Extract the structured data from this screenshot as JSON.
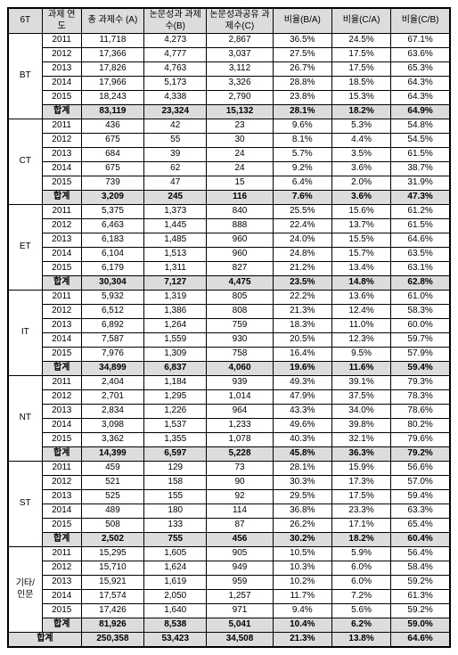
{
  "headers": {
    "h1": "6T",
    "h2": "과제\n연도",
    "h3": "총 과제수\n(A)",
    "h4": "논문성과\n과제수(B)",
    "h5": "논문성과공유\n과제수(C)",
    "h6": "비율(B/A)",
    "h7": "비율(C/A)",
    "h8": "비율(C/B)"
  },
  "groups": [
    {
      "name": "BT",
      "rows": [
        {
          "y": "2011",
          "a": "11,718",
          "b": "4,273",
          "c": "2,867",
          "ba": "36.5%",
          "ca": "24.5%",
          "cb": "67.1%"
        },
        {
          "y": "2012",
          "a": "17,366",
          "b": "4,777",
          "c": "3,037",
          "ba": "27.5%",
          "ca": "17.5%",
          "cb": "63.6%"
        },
        {
          "y": "2013",
          "a": "17,826",
          "b": "4,763",
          "c": "3,112",
          "ba": "26.7%",
          "ca": "17.5%",
          "cb": "65.3%"
        },
        {
          "y": "2014",
          "a": "17,966",
          "b": "5,173",
          "c": "3,326",
          "ba": "28.8%",
          "ca": "18.5%",
          "cb": "64.3%"
        },
        {
          "y": "2015",
          "a": "18,243",
          "b": "4,338",
          "c": "2,790",
          "ba": "23.8%",
          "ca": "15.3%",
          "cb": "64.3%"
        }
      ],
      "sum": {
        "y": "합계",
        "a": "83,119",
        "b": "23,324",
        "c": "15,132",
        "ba": "28.1%",
        "ca": "18.2%",
        "cb": "64.9%"
      }
    },
    {
      "name": "CT",
      "rows": [
        {
          "y": "2011",
          "a": "436",
          "b": "42",
          "c": "23",
          "ba": "9.6%",
          "ca": "5.3%",
          "cb": "54.8%"
        },
        {
          "y": "2012",
          "a": "675",
          "b": "55",
          "c": "30",
          "ba": "8.1%",
          "ca": "4.4%",
          "cb": "54.5%"
        },
        {
          "y": "2013",
          "a": "684",
          "b": "39",
          "c": "24",
          "ba": "5.7%",
          "ca": "3.5%",
          "cb": "61.5%"
        },
        {
          "y": "2014",
          "a": "675",
          "b": "62",
          "c": "24",
          "ba": "9.2%",
          "ca": "3.6%",
          "cb": "38.7%"
        },
        {
          "y": "2015",
          "a": "739",
          "b": "47",
          "c": "15",
          "ba": "6.4%",
          "ca": "2.0%",
          "cb": "31.9%"
        }
      ],
      "sum": {
        "y": "합계",
        "a": "3,209",
        "b": "245",
        "c": "116",
        "ba": "7.6%",
        "ca": "3.6%",
        "cb": "47.3%"
      }
    },
    {
      "name": "ET",
      "rows": [
        {
          "y": "2011",
          "a": "5,375",
          "b": "1,373",
          "c": "840",
          "ba": "25.5%",
          "ca": "15.6%",
          "cb": "61.2%"
        },
        {
          "y": "2012",
          "a": "6,463",
          "b": "1,445",
          "c": "888",
          "ba": "22.4%",
          "ca": "13.7%",
          "cb": "61.5%"
        },
        {
          "y": "2013",
          "a": "6,183",
          "b": "1,485",
          "c": "960",
          "ba": "24.0%",
          "ca": "15.5%",
          "cb": "64.6%"
        },
        {
          "y": "2014",
          "a": "6,104",
          "b": "1,513",
          "c": "960",
          "ba": "24.8%",
          "ca": "15.7%",
          "cb": "63.5%"
        },
        {
          "y": "2015",
          "a": "6,179",
          "b": "1,311",
          "c": "827",
          "ba": "21.2%",
          "ca": "13.4%",
          "cb": "63.1%"
        }
      ],
      "sum": {
        "y": "합계",
        "a": "30,304",
        "b": "7,127",
        "c": "4,475",
        "ba": "23.5%",
        "ca": "14.8%",
        "cb": "62.8%"
      }
    },
    {
      "name": "IT",
      "rows": [
        {
          "y": "2011",
          "a": "5,932",
          "b": "1,319",
          "c": "805",
          "ba": "22.2%",
          "ca": "13.6%",
          "cb": "61.0%"
        },
        {
          "y": "2012",
          "a": "6,512",
          "b": "1,386",
          "c": "808",
          "ba": "21.3%",
          "ca": "12.4%",
          "cb": "58.3%"
        },
        {
          "y": "2013",
          "a": "6,892",
          "b": "1,264",
          "c": "759",
          "ba": "18.3%",
          "ca": "11.0%",
          "cb": "60.0%"
        },
        {
          "y": "2014",
          "a": "7,587",
          "b": "1,559",
          "c": "930",
          "ba": "20.5%",
          "ca": "12.3%",
          "cb": "59.7%"
        },
        {
          "y": "2015",
          "a": "7,976",
          "b": "1,309",
          "c": "758",
          "ba": "16.4%",
          "ca": "9.5%",
          "cb": "57.9%"
        }
      ],
      "sum": {
        "y": "합계",
        "a": "34,899",
        "b": "6,837",
        "c": "4,060",
        "ba": "19.6%",
        "ca": "11.6%",
        "cb": "59.4%"
      }
    },
    {
      "name": "NT",
      "rows": [
        {
          "y": "2011",
          "a": "2,404",
          "b": "1,184",
          "c": "939",
          "ba": "49.3%",
          "ca": "39.1%",
          "cb": "79.3%"
        },
        {
          "y": "2012",
          "a": "2,701",
          "b": "1,295",
          "c": "1,014",
          "ba": "47.9%",
          "ca": "37.5%",
          "cb": "78.3%"
        },
        {
          "y": "2013",
          "a": "2,834",
          "b": "1,226",
          "c": "964",
          "ba": "43.3%",
          "ca": "34.0%",
          "cb": "78.6%"
        },
        {
          "y": "2014",
          "a": "3,098",
          "b": "1,537",
          "c": "1,233",
          "ba": "49.6%",
          "ca": "39.8%",
          "cb": "80.2%"
        },
        {
          "y": "2015",
          "a": "3,362",
          "b": "1,355",
          "c": "1,078",
          "ba": "40.3%",
          "ca": "32.1%",
          "cb": "79.6%"
        }
      ],
      "sum": {
        "y": "합계",
        "a": "14,399",
        "b": "6,597",
        "c": "5,228",
        "ba": "45.8%",
        "ca": "36.3%",
        "cb": "79.2%"
      }
    },
    {
      "name": "ST",
      "rows": [
        {
          "y": "2011",
          "a": "459",
          "b": "129",
          "c": "73",
          "ba": "28.1%",
          "ca": "15.9%",
          "cb": "56.6%"
        },
        {
          "y": "2012",
          "a": "521",
          "b": "158",
          "c": "90",
          "ba": "30.3%",
          "ca": "17.3%",
          "cb": "57.0%"
        },
        {
          "y": "2013",
          "a": "525",
          "b": "155",
          "c": "92",
          "ba": "29.5%",
          "ca": "17.5%",
          "cb": "59.4%"
        },
        {
          "y": "2014",
          "a": "489",
          "b": "180",
          "c": "114",
          "ba": "36.8%",
          "ca": "23.3%",
          "cb": "63.3%"
        },
        {
          "y": "2015",
          "a": "508",
          "b": "133",
          "c": "87",
          "ba": "26.2%",
          "ca": "17.1%",
          "cb": "65.4%"
        }
      ],
      "sum": {
        "y": "합계",
        "a": "2,502",
        "b": "755",
        "c": "456",
        "ba": "30.2%",
        "ca": "18.2%",
        "cb": "60.4%"
      }
    },
    {
      "name": "기타/\n인문",
      "rows": [
        {
          "y": "2011",
          "a": "15,295",
          "b": "1,605",
          "c": "905",
          "ba": "10.5%",
          "ca": "5.9%",
          "cb": "56.4%"
        },
        {
          "y": "2012",
          "a": "15,710",
          "b": "1,624",
          "c": "949",
          "ba": "10.3%",
          "ca": "6.0%",
          "cb": "58.4%"
        },
        {
          "y": "2013",
          "a": "15,921",
          "b": "1,619",
          "c": "959",
          "ba": "10.2%",
          "ca": "6.0%",
          "cb": "59.2%"
        },
        {
          "y": "2014",
          "a": "17,574",
          "b": "2,050",
          "c": "1,257",
          "ba": "11.7%",
          "ca": "7.2%",
          "cb": "61.3%"
        },
        {
          "y": "2015",
          "a": "17,426",
          "b": "1,640",
          "c": "971",
          "ba": "9.4%",
          "ca": "5.6%",
          "cb": "59.2%"
        }
      ],
      "sum": {
        "y": "합계",
        "a": "81,926",
        "b": "8,538",
        "c": "5,041",
        "ba": "10.4%",
        "ca": "6.2%",
        "cb": "59.0%"
      }
    }
  ],
  "grand": {
    "label": "합계",
    "a": "250,358",
    "b": "53,423",
    "c": "34,508",
    "ba": "21.3%",
    "ca": "13.8%",
    "cb": "64.6%"
  }
}
